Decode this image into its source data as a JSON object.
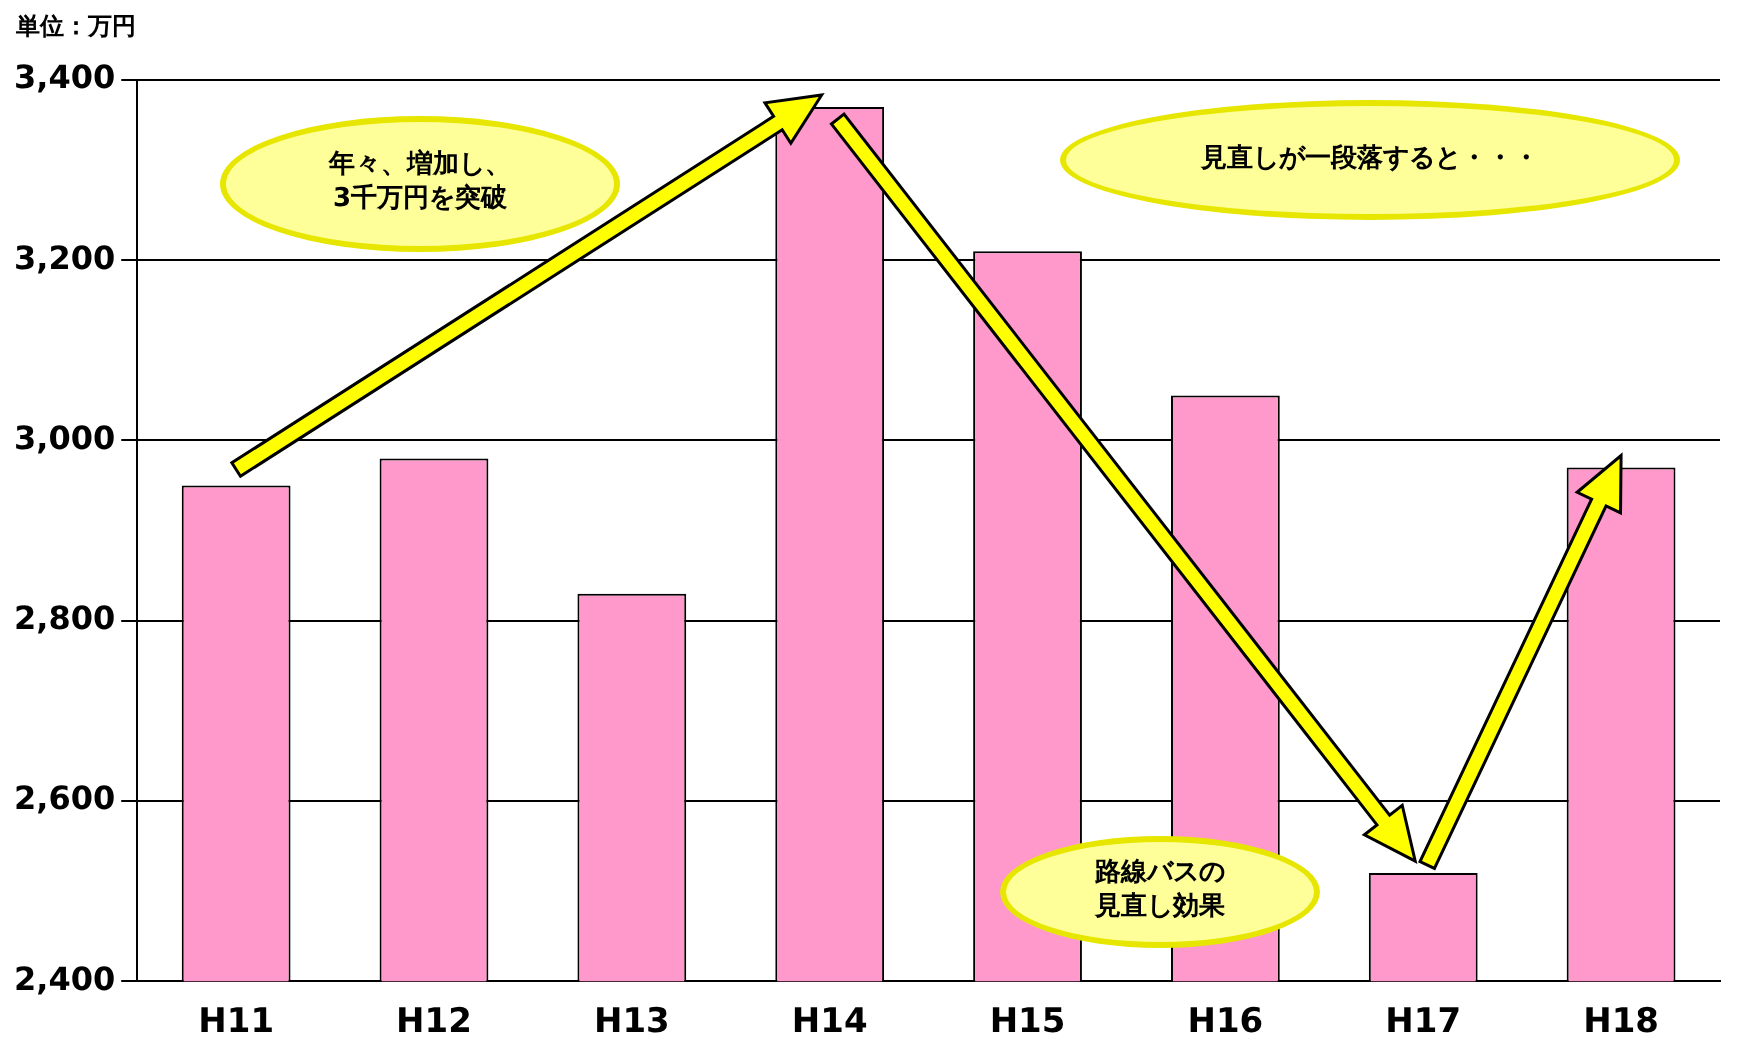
{
  "chart_data": {
    "type": "bar",
    "categories": [
      "H11",
      "H12",
      "H13",
      "H14",
      "H15",
      "H16",
      "H17",
      "H18"
    ],
    "values": [
      2950,
      2980,
      2830,
      3370,
      3210,
      3050,
      2520,
      2970
    ],
    "color": "#ff99cc",
    "ylim": [
      2400,
      3400
    ],
    "yticks": [
      {
        "value": 2400,
        "label": "2,400"
      },
      {
        "value": 2600,
        "label": "2,600"
      },
      {
        "value": 2800,
        "label": "2,800"
      },
      {
        "value": 3000,
        "label": "3,000"
      },
      {
        "value": 3200,
        "label": "3,200"
      },
      {
        "value": 3400,
        "label": "3,400"
      }
    ],
    "grid": "y",
    "annotations": [
      "単位：万円",
      "年々、増加し、3千万円を突破",
      "見直しが一段落すると・・・",
      "路線バスの見直し効果"
    ]
  }
}
